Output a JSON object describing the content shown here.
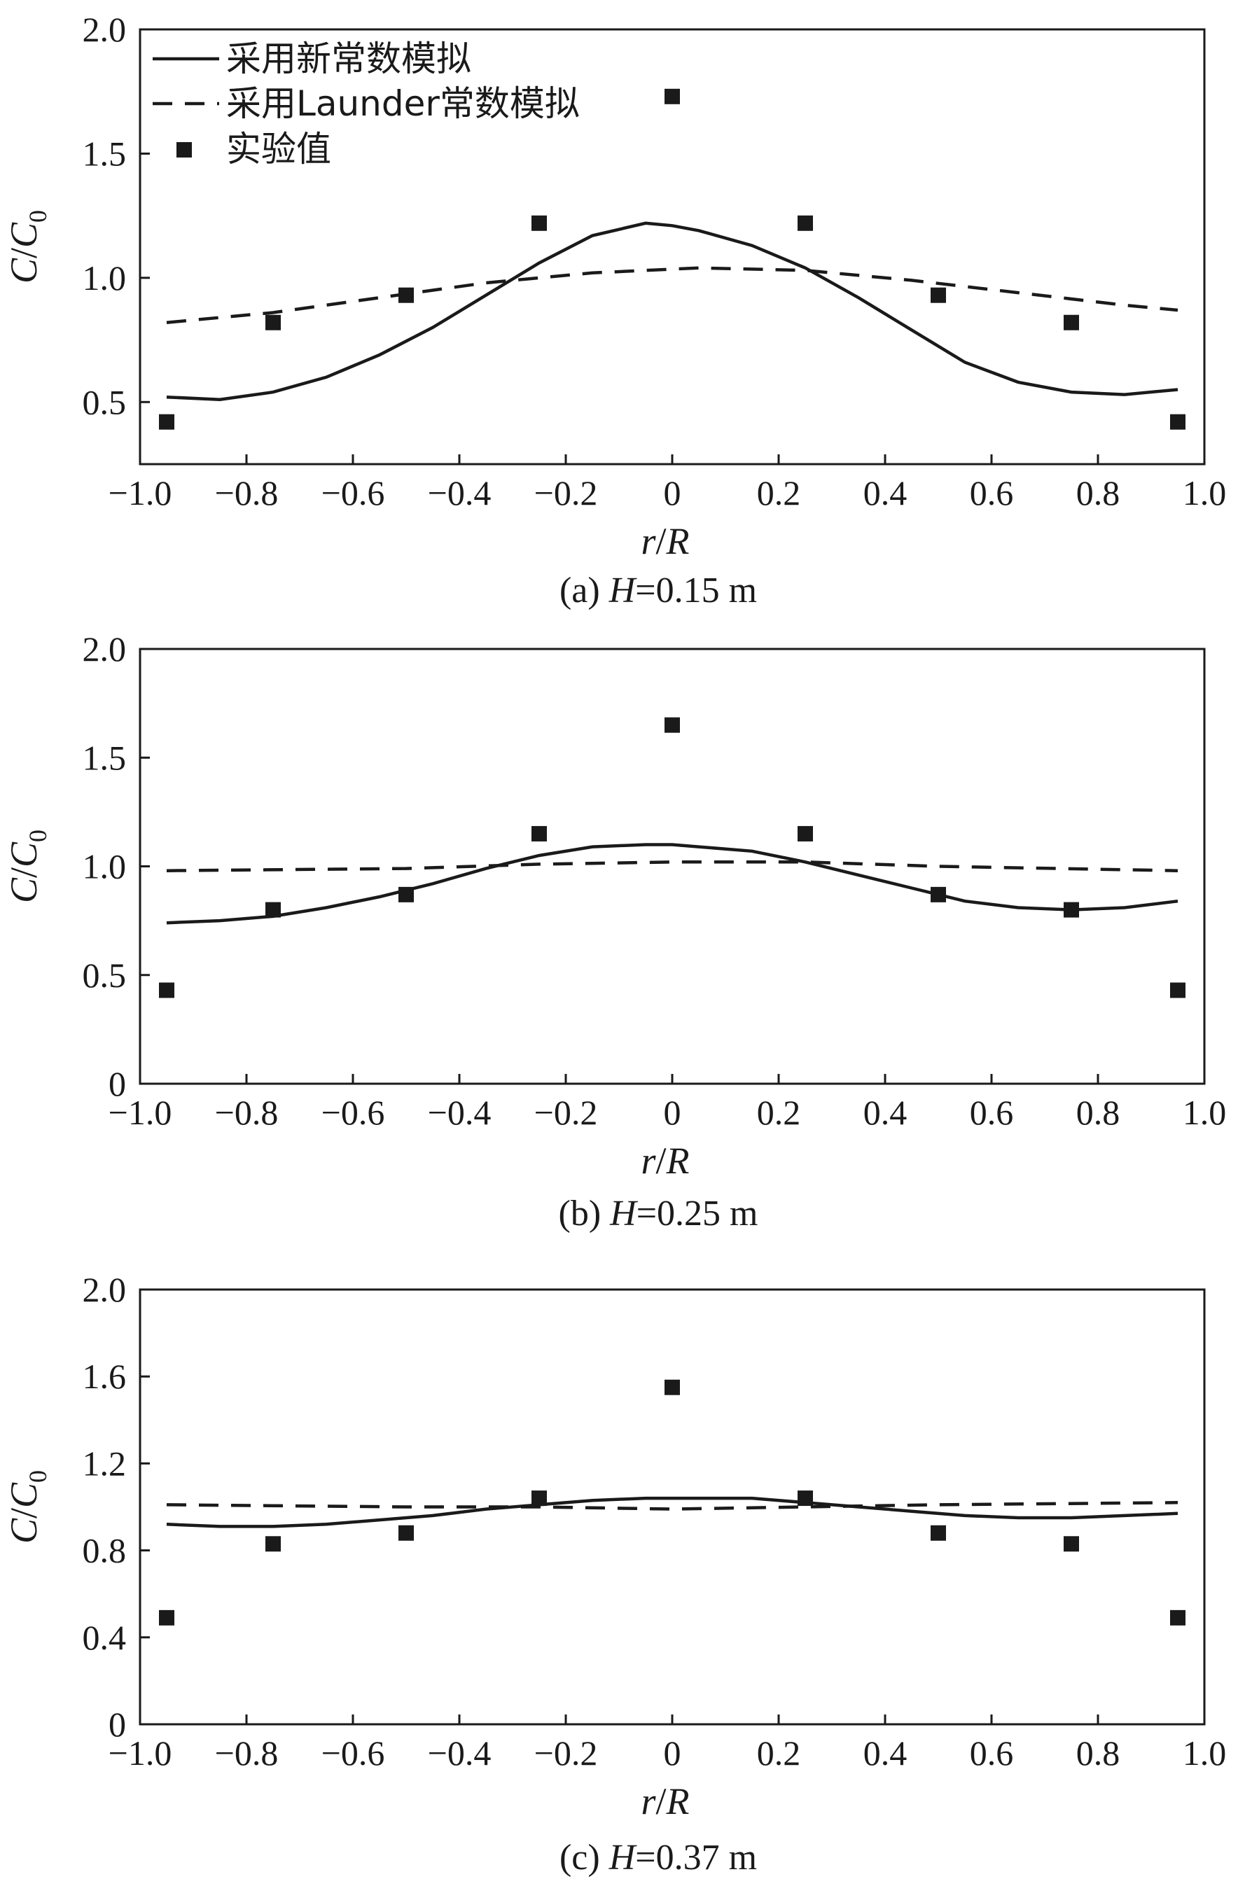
{
  "legend": {
    "solid_label": "采用新常数模拟",
    "dashed_label": "采用Launder常数模拟",
    "marker_label": "实验值"
  },
  "axis_text": {
    "x_title_r": "r",
    "x_title_sep": "/",
    "x_title_R": "R",
    "y_title_C": "C",
    "y_title_sep": "/",
    "y_title_C0": "C",
    "y_title_sub": "0"
  },
  "chart_data": [
    {
      "type": "line",
      "caption_prefix": "(a) ",
      "caption_var": "H",
      "caption_value": "=0.15 m",
      "xlabel": "r/R",
      "ylabel": "C/C0",
      "xlim": [
        -1.0,
        1.0
      ],
      "ylim": [
        0.25,
        2.0
      ],
      "xticks": [
        "−1.0",
        "−0.8",
        "−0.6",
        "−0.4",
        "−0.2",
        "0",
        "0.2",
        "0.4",
        "0.6",
        "0.8",
        "1.0"
      ],
      "yticks": [
        "0.5",
        "1.0",
        "1.5",
        "2.0"
      ],
      "ytick_values": [
        0.5,
        1.0,
        1.5,
        2.0
      ],
      "grid": false,
      "legend_position": "top-left",
      "series": [
        {
          "name": "采用新常数模拟",
          "style": "solid",
          "x": [
            -0.95,
            -0.85,
            -0.75,
            -0.65,
            -0.55,
            -0.45,
            -0.35,
            -0.25,
            -0.15,
            -0.05,
            0.0,
            0.05,
            0.15,
            0.25,
            0.35,
            0.45,
            0.55,
            0.65,
            0.75,
            0.85,
            0.95
          ],
          "y": [
            0.52,
            0.51,
            0.54,
            0.6,
            0.69,
            0.8,
            0.93,
            1.06,
            1.17,
            1.22,
            1.21,
            1.19,
            1.13,
            1.04,
            0.92,
            0.79,
            0.66,
            0.58,
            0.54,
            0.53,
            0.55
          ]
        },
        {
          "name": "采用Launder常数模拟",
          "style": "dashed",
          "x": [
            -0.95,
            -0.75,
            -0.55,
            -0.35,
            -0.15,
            0.05,
            0.25,
            0.45,
            0.65,
            0.85,
            0.95
          ],
          "y": [
            0.82,
            0.86,
            0.92,
            0.98,
            1.02,
            1.04,
            1.03,
            0.99,
            0.94,
            0.89,
            0.87
          ]
        },
        {
          "name": "实验值",
          "style": "markers",
          "x": [
            -0.95,
            -0.75,
            -0.5,
            -0.25,
            0.0,
            0.25,
            0.5,
            0.75,
            0.95
          ],
          "y": [
            0.42,
            0.82,
            0.93,
            1.22,
            1.73,
            1.22,
            0.93,
            0.82,
            0.42
          ]
        }
      ]
    },
    {
      "type": "line",
      "caption_prefix": "(b) ",
      "caption_var": "H",
      "caption_value": "=0.25 m",
      "xlabel": "r/R",
      "ylabel": "C/C0",
      "xlim": [
        -1.0,
        1.0
      ],
      "ylim": [
        0,
        2.0
      ],
      "xticks": [
        "−1.0",
        "−0.8",
        "−0.6",
        "−0.4",
        "−0.2",
        "0",
        "0.2",
        "0.4",
        "0.6",
        "0.8",
        "1.0"
      ],
      "yticks": [
        "0",
        "0.5",
        "1.0",
        "1.5",
        "2.0"
      ],
      "ytick_values": [
        0,
        0.5,
        1.0,
        1.5,
        2.0
      ],
      "grid": false,
      "series": [
        {
          "name": "采用新常数模拟",
          "style": "solid",
          "x": [
            -0.95,
            -0.85,
            -0.75,
            -0.65,
            -0.55,
            -0.45,
            -0.35,
            -0.25,
            -0.15,
            -0.05,
            0.0,
            0.05,
            0.15,
            0.25,
            0.35,
            0.45,
            0.55,
            0.65,
            0.75,
            0.85,
            0.95
          ],
          "y": [
            0.74,
            0.75,
            0.77,
            0.81,
            0.86,
            0.92,
            0.99,
            1.05,
            1.09,
            1.1,
            1.1,
            1.09,
            1.07,
            1.02,
            0.96,
            0.9,
            0.84,
            0.81,
            0.8,
            0.81,
            0.84
          ]
        },
        {
          "name": "采用Launder常数模拟",
          "style": "dashed",
          "x": [
            -0.95,
            -0.5,
            -0.25,
            0.0,
            0.25,
            0.5,
            0.95
          ],
          "y": [
            0.98,
            0.99,
            1.01,
            1.02,
            1.02,
            1.0,
            0.98
          ]
        },
        {
          "name": "实验值",
          "style": "markers",
          "x": [
            -0.95,
            -0.75,
            -0.5,
            -0.25,
            0.0,
            0.25,
            0.5,
            0.75,
            0.95
          ],
          "y": [
            0.43,
            0.8,
            0.87,
            1.15,
            1.65,
            1.15,
            0.87,
            0.8,
            0.43
          ]
        }
      ]
    },
    {
      "type": "line",
      "caption_prefix": "(c) ",
      "caption_var": "H",
      "caption_value": "=0.37 m",
      "xlabel": "r/R",
      "ylabel": "C/C0",
      "xlim": [
        -1.0,
        1.0
      ],
      "ylim": [
        0,
        2.0
      ],
      "xticks": [
        "−1.0",
        "−0.8",
        "−0.6",
        "−0.4",
        "−0.2",
        "0",
        "0.2",
        "0.4",
        "0.6",
        "0.8",
        "1.0"
      ],
      "yticks": [
        "0",
        "0.4",
        "0.8",
        "1.2",
        "1.6",
        "2.0"
      ],
      "ytick_values": [
        0,
        0.4,
        0.8,
        1.2,
        1.6,
        2.0
      ],
      "grid": false,
      "series": [
        {
          "name": "采用新常数模拟",
          "style": "solid",
          "x": [
            -0.95,
            -0.85,
            -0.75,
            -0.65,
            -0.55,
            -0.45,
            -0.35,
            -0.25,
            -0.15,
            -0.05,
            0.05,
            0.15,
            0.25,
            0.35,
            0.45,
            0.55,
            0.65,
            0.75,
            0.85,
            0.95
          ],
          "y": [
            0.92,
            0.91,
            0.91,
            0.92,
            0.94,
            0.96,
            0.99,
            1.01,
            1.03,
            1.04,
            1.04,
            1.04,
            1.02,
            1.0,
            0.98,
            0.96,
            0.95,
            0.95,
            0.96,
            0.97
          ]
        },
        {
          "name": "采用Launder常数模拟",
          "style": "dashed",
          "x": [
            -0.95,
            -0.5,
            -0.25,
            0.0,
            0.25,
            0.5,
            0.95
          ],
          "y": [
            1.01,
            1.0,
            1.0,
            0.99,
            1.0,
            1.01,
            1.02
          ]
        },
        {
          "name": "实验值",
          "style": "markers",
          "x": [
            -0.95,
            -0.75,
            -0.5,
            -0.25,
            0.0,
            0.25,
            0.5,
            0.75,
            0.95
          ],
          "y": [
            0.49,
            0.83,
            0.88,
            1.04,
            1.55,
            1.04,
            0.88,
            0.83,
            0.49
          ]
        }
      ]
    }
  ]
}
